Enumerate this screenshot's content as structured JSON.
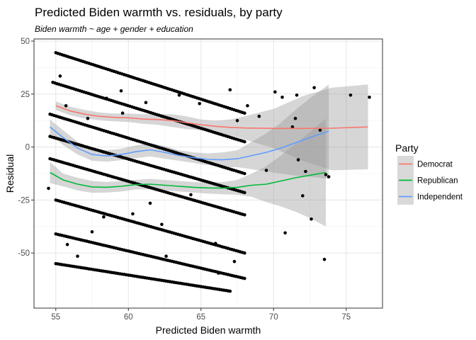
{
  "chart_data": {
    "type": "scatter",
    "title": "Predicted Biden warmth vs. residuals, by party",
    "subtitle": "Biden warmth ~ age + gender + education",
    "xlabel": "Predicted Biden warmth",
    "ylabel": "Residual",
    "xlim": [
      53.5,
      77.5
    ],
    "ylim": [
      -76,
      51
    ],
    "x_ticks": [
      "55",
      "60",
      "65",
      "70",
      "75"
    ],
    "y_ticks": [
      "-50",
      "-25",
      "0",
      "25",
      "50"
    ],
    "grid": true,
    "legend_placement": "right",
    "legend_title": "Party",
    "points_color": "#000000",
    "band_color": "#999999",
    "point_bands": [
      {
        "x0": 55.0,
        "x1": 68.0,
        "y0": 44.5,
        "y1": 16.0
      },
      {
        "x0": 54.8,
        "x1": 68.0,
        "y0": 30.5,
        "y1": 2.5
      },
      {
        "x0": 54.6,
        "x1": 68.0,
        "y0": 15.5,
        "y1": -12.5
      },
      {
        "x0": 54.6,
        "x1": 68.0,
        "y0": 5.0,
        "y1": -21.5
      },
      {
        "x0": 54.6,
        "x1": 68.0,
        "y0": -5.5,
        "y1": -32.0
      },
      {
        "x0": 55.0,
        "x1": 68.0,
        "y0": -25.0,
        "y1": -50.0
      },
      {
        "x0": 55.0,
        "x1": 68.0,
        "y0": -41.0,
        "y1": -62.0
      },
      {
        "x0": 55.0,
        "x1": 67.0,
        "y0": -55.0,
        "y1": -68.0
      }
    ],
    "scattered_points": [
      {
        "x": 54.5,
        "y": -19.5
      },
      {
        "x": 55.3,
        "y": 33.5
      },
      {
        "x": 55.7,
        "y": 19.5
      },
      {
        "x": 55.8,
        "y": -46.0
      },
      {
        "x": 56.5,
        "y": -51.5
      },
      {
        "x": 57.2,
        "y": 13.5
      },
      {
        "x": 57.5,
        "y": -40.0
      },
      {
        "x": 58.3,
        "y": -33.0
      },
      {
        "x": 58.5,
        "y": 23.0
      },
      {
        "x": 59.5,
        "y": 26.5
      },
      {
        "x": 59.6,
        "y": 16.0
      },
      {
        "x": 60.3,
        "y": -31.5
      },
      {
        "x": 61.2,
        "y": 21.0
      },
      {
        "x": 61.5,
        "y": -26.5
      },
      {
        "x": 62.3,
        "y": -36.5
      },
      {
        "x": 62.6,
        "y": -51.5
      },
      {
        "x": 63.5,
        "y": 24.5
      },
      {
        "x": 64.3,
        "y": -22.5
      },
      {
        "x": 64.9,
        "y": 20.5
      },
      {
        "x": 66.0,
        "y": -45.5
      },
      {
        "x": 66.2,
        "y": -59.5
      },
      {
        "x": 67.0,
        "y": 27.0
      },
      {
        "x": 67.3,
        "y": -54.0
      },
      {
        "x": 67.5,
        "y": 12.5
      },
      {
        "x": 68.2,
        "y": 19.5
      },
      {
        "x": 69.0,
        "y": 14.5
      },
      {
        "x": 69.5,
        "y": -11.0
      },
      {
        "x": 70.1,
        "y": 26.0
      },
      {
        "x": 70.6,
        "y": 23.5
      },
      {
        "x": 70.8,
        "y": -40.5
      },
      {
        "x": 71.3,
        "y": 9.5
      },
      {
        "x": 71.6,
        "y": 24.5
      },
      {
        "x": 71.7,
        "y": -6.0
      },
      {
        "x": 72.0,
        "y": -23.0
      },
      {
        "x": 72.2,
        "y": -11.5
      },
      {
        "x": 72.6,
        "y": -34.0
      },
      {
        "x": 73.2,
        "y": 8.0
      },
      {
        "x": 73.6,
        "y": -13.0
      },
      {
        "x": 73.8,
        "y": -14.0
      },
      {
        "x": 73.5,
        "y": -53.0
      },
      {
        "x": 75.3,
        "y": 24.5
      },
      {
        "x": 76.6,
        "y": 23.5
      },
      {
        "x": 71.5,
        "y": 13.5
      },
      {
        "x": 72.8,
        "y": 28.0
      }
    ],
    "series": [
      {
        "name": "Democrat",
        "color": "#F8766D",
        "x": [
          55.0,
          56.0,
          57.0,
          58.0,
          59.0,
          60.0,
          61.0,
          62.0,
          63.0,
          64.0,
          65.0,
          66.0,
          67.0,
          68.0,
          70.0,
          72.0,
          74.0,
          76.5
        ],
        "y": [
          19.5,
          17.0,
          15.5,
          14.5,
          14.0,
          13.8,
          13.2,
          13.0,
          12.5,
          11.5,
          10.5,
          9.8,
          9.3,
          9.0,
          8.8,
          8.8,
          8.9,
          9.5
        ],
        "band_upper": [
          21.5,
          19.0,
          17.5,
          16.3,
          15.8,
          15.8,
          15.5,
          15.5,
          15.5,
          14.5,
          13.0,
          12.5,
          13.0,
          14.5,
          18.0,
          24.0,
          28.0,
          29.5
        ],
        "band_lower": [
          17.5,
          15.0,
          13.5,
          12.7,
          12.2,
          11.8,
          11.0,
          10.5,
          9.5,
          8.5,
          8.0,
          7.0,
          5.6,
          3.5,
          -0.5,
          -6.5,
          -11.0,
          -10.5
        ]
      },
      {
        "name": "Republican",
        "color": "#00BA38",
        "x": [
          54.6,
          55.5,
          56.5,
          57.5,
          58.5,
          59.5,
          60.5,
          61.5,
          62.5,
          63.5,
          64.5,
          65.5,
          66.5,
          67.5,
          68.5,
          69.5,
          70.5,
          71.5,
          72.5,
          73.6
        ],
        "y": [
          -12.0,
          -15.5,
          -17.5,
          -18.8,
          -19.0,
          -18.5,
          -17.7,
          -17.5,
          -18.0,
          -18.5,
          -19.0,
          -19.3,
          -19.4,
          -19.0,
          -18.0,
          -17.5,
          -16.0,
          -14.5,
          -13.3,
          -12.0
        ],
        "band_upper": [
          -7.0,
          -12.5,
          -14.5,
          -16.0,
          -16.5,
          -16.0,
          -15.5,
          -15.0,
          -15.5,
          -16.0,
          -16.5,
          -16.8,
          -16.5,
          -15.5,
          -12.5,
          -9.0,
          -4.0,
          1.5,
          7.0,
          13.5
        ],
        "band_lower": [
          -17.0,
          -18.5,
          -20.5,
          -21.6,
          -21.5,
          -21.0,
          -20.0,
          -20.0,
          -20.5,
          -21.0,
          -21.5,
          -22.0,
          -22.3,
          -22.5,
          -23.5,
          -26.0,
          -28.0,
          -30.5,
          -33.5,
          -37.5
        ]
      },
      {
        "name": "Independent",
        "color": "#619CFF",
        "x": [
          54.6,
          55.5,
          56.5,
          57.5,
          58.5,
          59.5,
          60.5,
          61.5,
          62.5,
          63.5,
          64.5,
          65.5,
          66.5,
          67.5,
          68.5,
          69.5,
          70.5,
          71.5,
          72.5,
          73.8
        ],
        "y": [
          9.5,
          4.5,
          -0.5,
          -3.5,
          -4.2,
          -3.5,
          -2.2,
          -1.3,
          -2.5,
          -4.0,
          -5.0,
          -5.8,
          -6.0,
          -5.5,
          -4.0,
          -2.5,
          -0.5,
          2.0,
          4.5,
          7.5
        ],
        "band_upper": [
          13.0,
          8.0,
          2.5,
          -0.5,
          -1.5,
          -0.8,
          0.8,
          1.8,
          0.5,
          -1.5,
          -2.5,
          -3.0,
          -2.5,
          -1.5,
          2.5,
          6.5,
          11.5,
          17.5,
          23.0,
          29.5
        ],
        "band_lower": [
          6.0,
          1.0,
          -3.5,
          -6.5,
          -6.9,
          -6.2,
          -5.2,
          -4.4,
          -5.5,
          -6.5,
          -7.5,
          -8.6,
          -9.5,
          -9.5,
          -10.5,
          -11.5,
          -12.5,
          -13.5,
          -14.0,
          -15.0
        ]
      }
    ]
  }
}
